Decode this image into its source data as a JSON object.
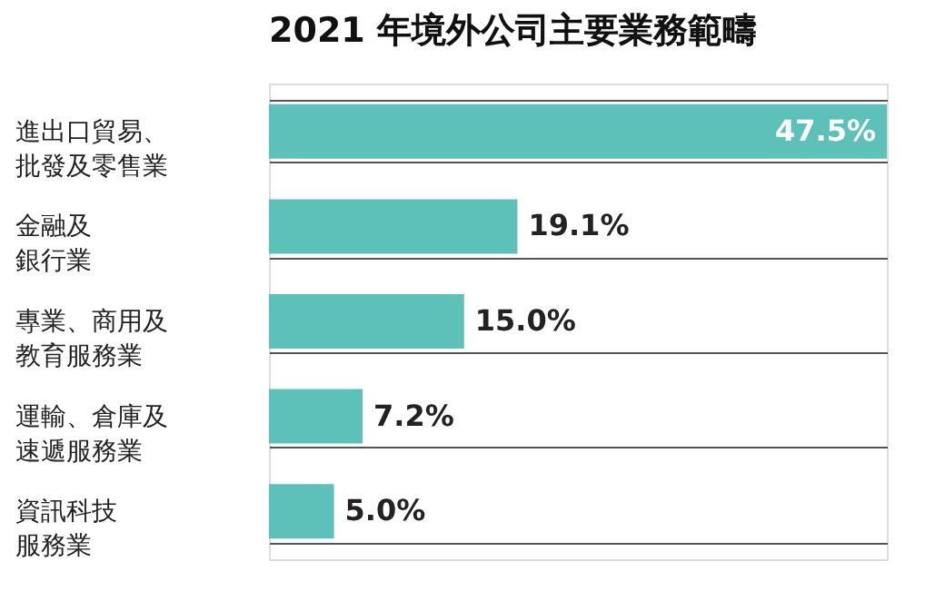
{
  "chart_data": {
    "type": "bar",
    "orientation": "horizontal",
    "title": "2021 年境外公司主要業務範疇",
    "categories": [
      "進出口貿易、批發及零售業",
      "金融及銀行業",
      "專業、商用及教育服務業",
      "運輸、倉庫及速遞服務業",
      "資訊科技服務業"
    ],
    "values": [
      47.5,
      19.1,
      15.0,
      7.2,
      5.0
    ],
    "value_labels": [
      "47.5%",
      "19.1%",
      "15.0%",
      "7.2%",
      "5.0%"
    ],
    "color": "#5dc1b9",
    "grid": "y"
  }
}
